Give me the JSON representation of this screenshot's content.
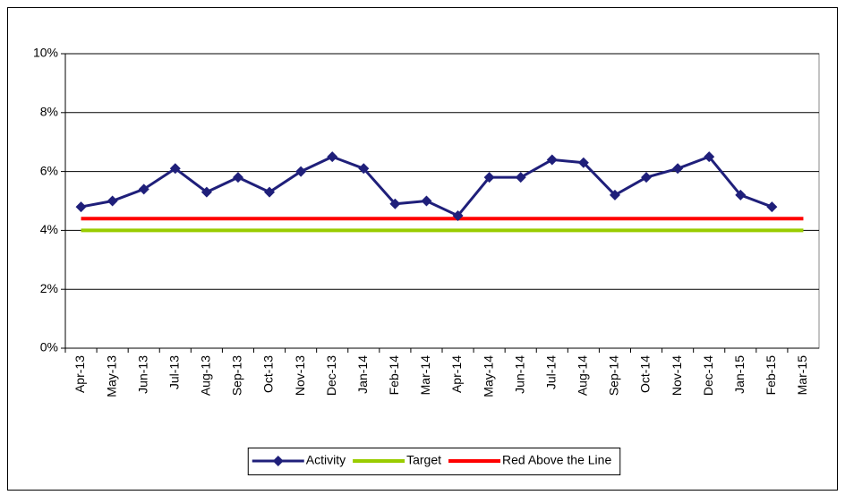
{
  "chart_data": {
    "type": "line",
    "categories": [
      "Apr-13",
      "May-13",
      "Jun-13",
      "Jul-13",
      "Aug-13",
      "Sep-13",
      "Oct-13",
      "Nov-13",
      "Dec-13",
      "Jan-14",
      "Feb-14",
      "Mar-14",
      "Apr-14",
      "May-14",
      "Jun-14",
      "Jul-14",
      "Aug-14",
      "Sep-14",
      "Oct-14",
      "Nov-14",
      "Dec-14",
      "Jan-15",
      "Feb-15",
      "Mar-15"
    ],
    "series": [
      {
        "name": "Activity",
        "color": "#1f1f7a",
        "marker": "diamond",
        "values": [
          4.8,
          5.0,
          5.4,
          6.1,
          5.3,
          5.8,
          5.3,
          6.0,
          6.5,
          6.1,
          4.9,
          5.0,
          4.5,
          5.8,
          5.8,
          6.4,
          6.3,
          5.2,
          5.8,
          6.1,
          6.5,
          5.2,
          4.8,
          null
        ]
      },
      {
        "name": "Target",
        "color": "#99cc00",
        "values": [
          4,
          4,
          4,
          4,
          4,
          4,
          4,
          4,
          4,
          4,
          4,
          4,
          4,
          4,
          4,
          4,
          4,
          4,
          4,
          4,
          4,
          4,
          4,
          4
        ]
      },
      {
        "name": "Red Above the Line",
        "color": "#ff0000",
        "values": [
          4.4,
          4.4,
          4.4,
          4.4,
          4.4,
          4.4,
          4.4,
          4.4,
          4.4,
          4.4,
          4.4,
          4.4,
          4.4,
          4.4,
          4.4,
          4.4,
          4.4,
          4.4,
          4.4,
          4.4,
          4.4,
          4.4,
          4.4,
          4.4
        ]
      }
    ],
    "ylim": [
      0,
      10
    ],
    "yticks": [
      {
        "value": 0,
        "label": "0%"
      },
      {
        "value": 2,
        "label": "2%"
      },
      {
        "value": 4,
        "label": "4%"
      },
      {
        "value": 6,
        "label": "6%"
      },
      {
        "value": 8,
        "label": "8%"
      },
      {
        "value": 10,
        "label": "10%"
      }
    ],
    "grid": true,
    "legend": "bottom"
  }
}
